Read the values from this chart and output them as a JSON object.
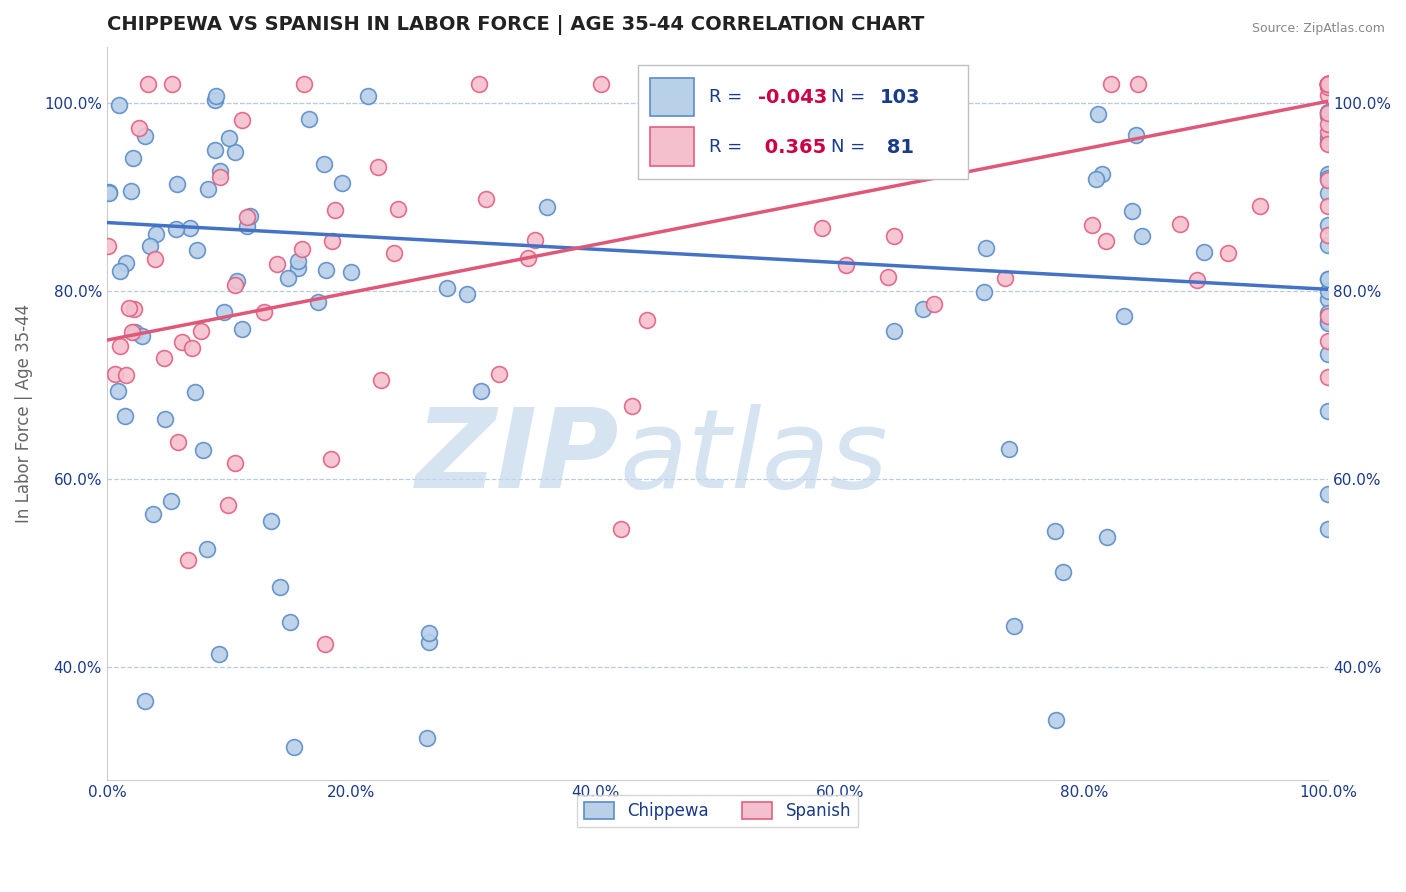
{
  "title": "CHIPPEWA VS SPANISH IN LABOR FORCE | AGE 35-44 CORRELATION CHART",
  "source_text": "Source: ZipAtlas.com",
  "ylabel": "In Labor Force | Age 35-44",
  "xlim": [
    0.0,
    1.0
  ],
  "ylim": [
    0.28,
    1.06
  ],
  "x_ticks": [
    0.0,
    0.2,
    0.4,
    0.6,
    0.8,
    1.0
  ],
  "x_tick_labels": [
    "0.0%",
    "20.0%",
    "40.0%",
    "60.0%",
    "80.0%",
    "100.0%"
  ],
  "y_ticks": [
    0.4,
    0.6,
    0.8,
    1.0
  ],
  "y_tick_labels": [
    "40.0%",
    "60.0%",
    "80.0%",
    "100.0%"
  ],
  "chippewa_R": -0.043,
  "chippewa_N": 103,
  "spanish_R": 0.365,
  "spanish_N": 81,
  "chippewa_color": "#b8d0e8",
  "chippewa_edge_color": "#5b8cc8",
  "spanish_color": "#f5c0ce",
  "spanish_edge_color": "#e06080",
  "chippewa_line_color": "#4472c4",
  "spanish_line_color": "#e05878",
  "legend_text_color": "#1a3a8a",
  "legend_R_color": "#cc0044",
  "watermark_zip": "ZIP",
  "watermark_atlas": "atlas",
  "watermark_color": "#c5d8ec",
  "background_color": "#ffffff",
  "grid_color": "#b8cce0",
  "chippewa_line_y0": 0.873,
  "chippewa_line_y1": 0.802,
  "spanish_line_y0": 0.748,
  "spanish_line_y1": 1.002
}
